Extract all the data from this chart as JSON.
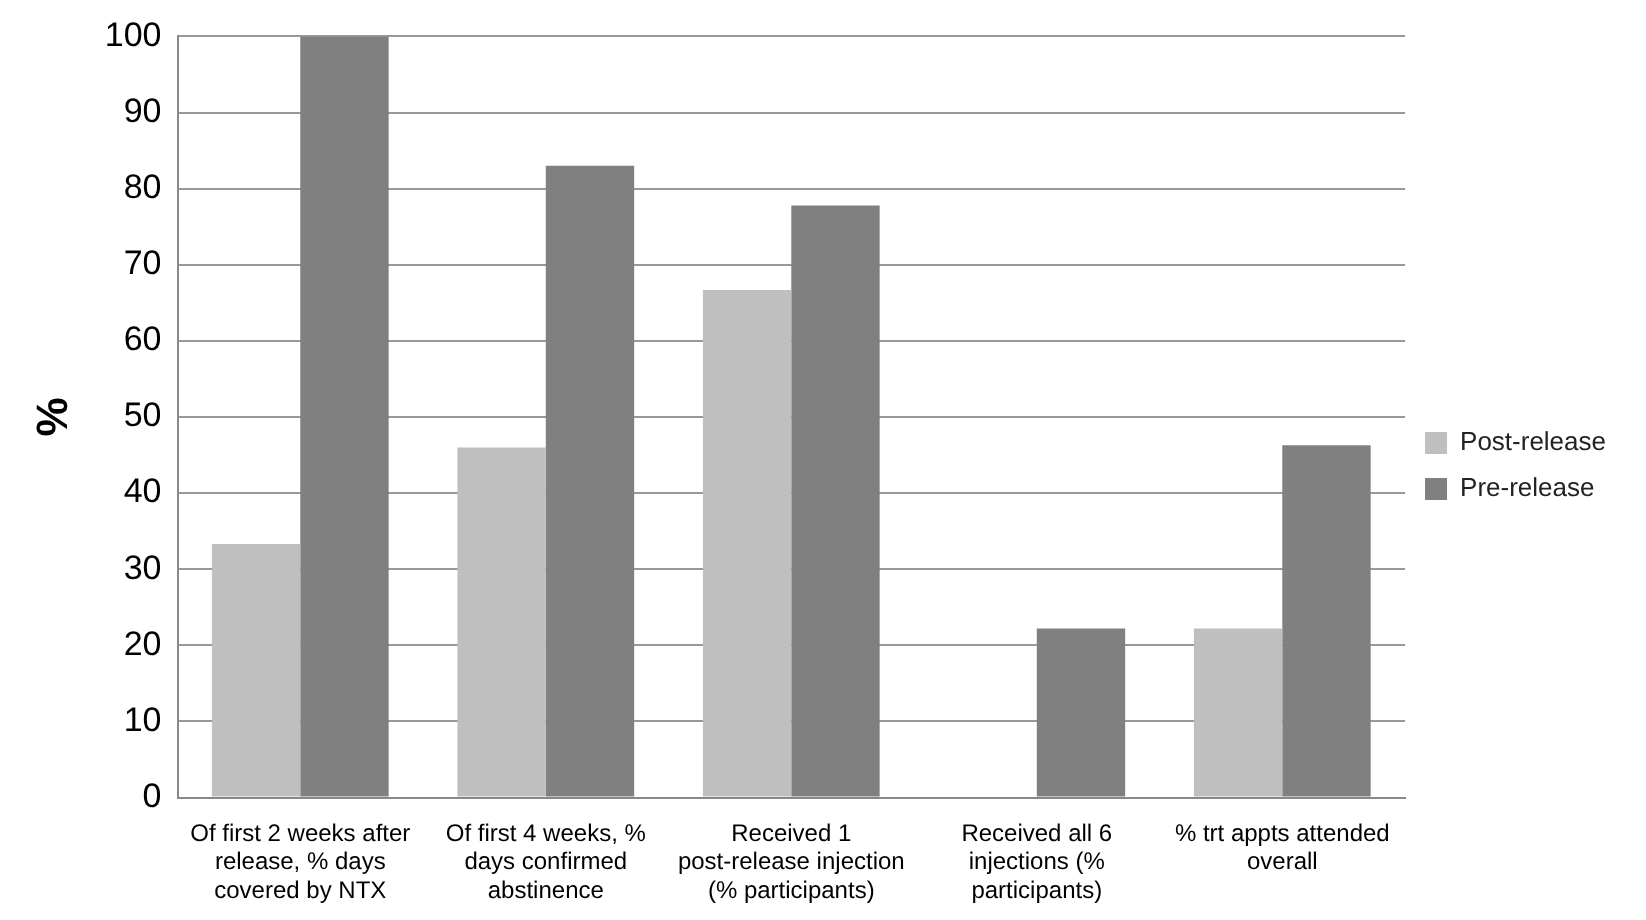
{
  "chart_data": {
    "type": "bar",
    "ylabel": "%",
    "categories": [
      "Of first 2 weeks after release, % days covered by NTX",
      "Of first 4 weeks, % days confirmed abstinence",
      "Received 1 post-release injection (% participants)",
      "Received all 6 injections (% participants)",
      "% trt appts attended overall"
    ],
    "series": [
      {
        "name": "Post-release",
        "color": "#bfbfbf",
        "values": [
          33.3,
          46,
          66.7,
          0,
          22.2
        ]
      },
      {
        "name": "Pre-release",
        "color": "#808080",
        "values": [
          100,
          83,
          77.8,
          22.2,
          46.3
        ]
      }
    ],
    "ylim": [
      0,
      100
    ],
    "yticks": [
      0,
      10,
      20,
      30,
      40,
      50,
      60,
      70,
      80,
      90,
      100
    ],
    "grid": "y",
    "legend": "right"
  }
}
